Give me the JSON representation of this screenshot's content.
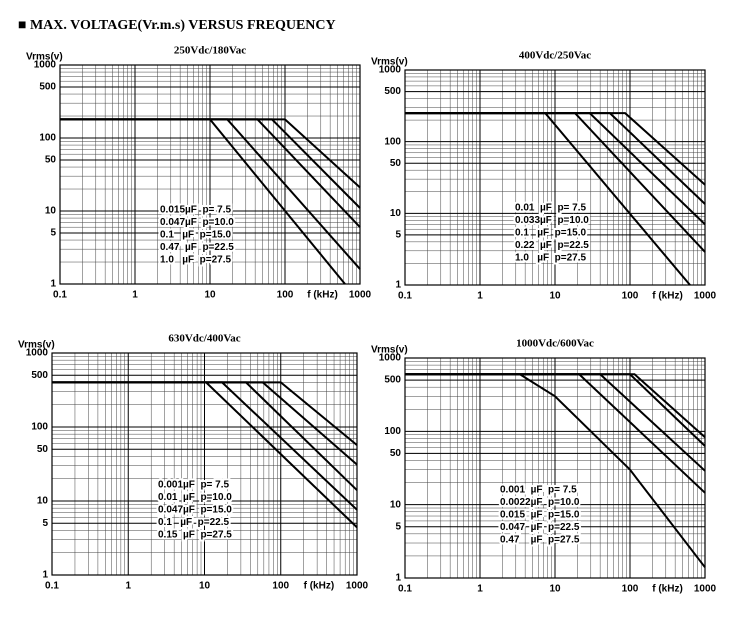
{
  "heading": "■ MAX. VOLTAGE(Vr.m.s) VERSUS FREQUENCY",
  "chart_data": [
    {
      "type": "line",
      "title": "250Vdc/180Vac",
      "y_label": "Vrms(v)",
      "x_label": "f (kHz)",
      "log_x": true,
      "log_y": true,
      "grid": true,
      "xlim": [
        0.1,
        1000
      ],
      "ylim": [
        1,
        1000
      ],
      "xticks": [
        0.1,
        1,
        10,
        100,
        1000
      ],
      "yticks": [
        1,
        5,
        10,
        50,
        100,
        500,
        1000
      ],
      "series": [
        {
          "name": "0.015µF  p= 7.5",
          "color": "#000",
          "x": [
            0.1,
            100,
            1000
          ],
          "values": [
            180,
            180,
            21
          ]
        },
        {
          "name": "0.047µF  p=10.0",
          "color": "#000",
          "x": [
            0.1,
            67,
            1000
          ],
          "values": [
            180,
            180,
            11
          ]
        },
        {
          "name": "0.1   µF  p=15.0",
          "color": "#000",
          "x": [
            0.1,
            43,
            1000
          ],
          "values": [
            180,
            180,
            6
          ]
        },
        {
          "name": "0.47  µF  p=22.5",
          "color": "#000",
          "x": [
            0.1,
            17,
            1000
          ],
          "values": [
            180,
            180,
            1.6
          ]
        },
        {
          "name": "1.0   µF  p=27.5",
          "color": "#000",
          "x": [
            0.1,
            10,
            630
          ],
          "values": [
            180,
            180,
            1
          ]
        }
      ]
    },
    {
      "type": "line",
      "title": "400Vdc/250Vac",
      "y_label": "Vrms(v)",
      "x_label": "f (kHz)",
      "log_x": true,
      "log_y": true,
      "grid": true,
      "xlim": [
        0.1,
        1000
      ],
      "ylim": [
        1,
        1000
      ],
      "xticks": [
        0.1,
        1,
        10,
        100,
        1000
      ],
      "yticks": [
        1,
        5,
        10,
        50,
        100,
        500,
        1000
      ],
      "series": [
        {
          "name": "0.01  µF  p= 7.5",
          "color": "#000",
          "x": [
            0.1,
            86,
            1000
          ],
          "values": [
            250,
            250,
            25
          ]
        },
        {
          "name": "0.033µF  p=10.0",
          "color": "#000",
          "x": [
            0.1,
            54,
            1000
          ],
          "values": [
            250,
            250,
            13.5
          ]
        },
        {
          "name": "0.1   µF  p=15.0",
          "color": "#000",
          "x": [
            0.1,
            29,
            1000
          ],
          "values": [
            250,
            250,
            7
          ]
        },
        {
          "name": "0.22  µF  p=22.5",
          "color": "#000",
          "x": [
            0.1,
            18.5,
            1000
          ],
          "values": [
            250,
            250,
            2.9
          ]
        },
        {
          "name": "1.0   µF  p=27.5",
          "color": "#000",
          "x": [
            0.1,
            7.4,
            630
          ],
          "values": [
            250,
            250,
            1
          ]
        }
      ]
    },
    {
      "type": "line",
      "title": "630Vdc/400Vac",
      "y_label": "Vrms(v)",
      "x_label": "f (kHz)",
      "log_x": true,
      "log_y": true,
      "grid": true,
      "xlim": [
        0.1,
        1000
      ],
      "ylim": [
        1,
        1000
      ],
      "xticks": [
        0.1,
        1,
        10,
        100,
        1000
      ],
      "yticks": [
        1,
        5,
        10,
        50,
        100,
        500,
        1000
      ],
      "series": [
        {
          "name": "0.001µF  p= 7.5",
          "color": "#000",
          "x": [
            0.1,
            100,
            1000
          ],
          "values": [
            400,
            400,
            57
          ]
        },
        {
          "name": "0.01  µF  p=10.0",
          "color": "#000",
          "x": [
            0.1,
            58,
            1000
          ],
          "values": [
            400,
            400,
            31
          ]
        },
        {
          "name": "0.047µF  p=15.0",
          "color": "#000",
          "x": [
            0.1,
            35,
            1000
          ],
          "values": [
            400,
            400,
            14
          ]
        },
        {
          "name": "0.1   µF  p=22.5",
          "color": "#000",
          "x": [
            0.1,
            17,
            1000
          ],
          "values": [
            400,
            400,
            7.6
          ]
        },
        {
          "name": "0.15  µF  p=27.5",
          "color": "#000",
          "x": [
            0.1,
            10.5,
            1000
          ],
          "values": [
            400,
            400,
            4.4
          ]
        }
      ]
    },
    {
      "type": "line",
      "title": "1000Vdc/600Vac",
      "y_label": "Vrms(v)",
      "x_label": "f (kHz)",
      "log_x": true,
      "log_y": true,
      "grid": true,
      "xlim": [
        0.1,
        1000
      ],
      "ylim": [
        1,
        1000
      ],
      "xticks": [
        0.1,
        1,
        10,
        100,
        1000
      ],
      "yticks": [
        1,
        5,
        10,
        50,
        100,
        500,
        1000
      ],
      "series": [
        {
          "name": "0.001  µF  p= 7.5",
          "color": "#000",
          "x": [
            0.1,
            115,
            1000
          ],
          "values": [
            600,
            600,
            83
          ]
        },
        {
          "name": "0.0022µF  p=10.0",
          "color": "#000",
          "x": [
            0.1,
            100,
            1000
          ],
          "values": [
            600,
            600,
            63
          ]
        },
        {
          "name": "0.015  µF  p=15.0",
          "color": "#000",
          "x": [
            0.1,
            40,
            1000
          ],
          "values": [
            600,
            600,
            29
          ]
        },
        {
          "name": "0.047  µF  p=22.5",
          "color": "#000",
          "x": [
            0.1,
            21,
            1000
          ],
          "values": [
            600,
            600,
            14.5
          ]
        },
        {
          "name": "0.47    µF  p=27.5",
          "color": "#000",
          "x": [
            0.1,
            3.4,
            10,
            100,
            1000
          ],
          "values": [
            600,
            600,
            300,
            30,
            1.4
          ]
        }
      ]
    }
  ]
}
